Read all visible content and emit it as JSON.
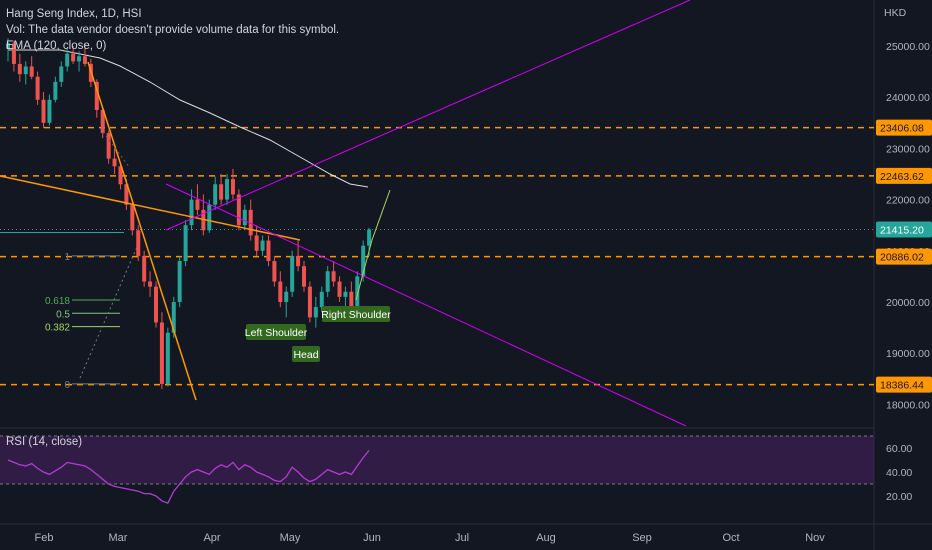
{
  "header": {
    "symbol_line": "Hang Seng Index, 1D, HSI",
    "volume_note": "Vol: The data vendor doesn't provide volume data for this symbol.",
    "ema_label": "EMA (120, close, 0)",
    "rsi_label": "RSI (14, close)",
    "currency": "HKD"
  },
  "colors": {
    "background": "#131722",
    "bull": "#26a69a",
    "bear": "#ef5350",
    "level_line": "#ff9800",
    "trend_magenta": "#d500f9",
    "rsi_line": "#b43cd6",
    "rsi_band": "#4a2163",
    "ema": "#ffffff"
  },
  "chart_data": {
    "type": "candlestick",
    "y_axis_ticks": [
      25000,
      24000,
      23000,
      22000,
      21000,
      20000,
      19000,
      18000
    ],
    "y_tick_labels": [
      "25000.00",
      "24000.00",
      "23000.00",
      "22000.00",
      "21000.00",
      "20000.00",
      "19000.00",
      "18000.00"
    ],
    "x_axis_labels": [
      "Feb",
      "Mar",
      "Apr",
      "May",
      "Jun",
      "Jul",
      "Aug",
      "Sep",
      "Oct",
      "Nov"
    ],
    "price_levels": [
      {
        "value": 23406.08,
        "label": "23406.08"
      },
      {
        "value": 22463.62,
        "label": "22463.62"
      },
      {
        "value": 20886.02,
        "label": "20886.02"
      },
      {
        "value": 18386.44,
        "label": "18386.44"
      }
    ],
    "last_price": {
      "value": 21415.2,
      "label": "21415.20"
    },
    "fib_levels": [
      {
        "label": "1",
        "value": 20900
      },
      {
        "label": "0.618",
        "value": 20040
      },
      {
        "label": "0.5",
        "value": 19780
      },
      {
        "label": "0.382",
        "value": 19520
      },
      {
        "label": "0",
        "value": 18400
      }
    ],
    "pattern_labels": [
      "Left Shoulder",
      "Head",
      "Right Shoulder"
    ],
    "candles": [
      [
        24950,
        25150,
        24700,
        25050
      ],
      [
        25050,
        25100,
        24500,
        24650
      ],
      [
        24650,
        24850,
        24300,
        24450
      ],
      [
        24450,
        24700,
        24250,
        24600
      ],
      [
        24600,
        24800,
        24350,
        24400
      ],
      [
        24400,
        24500,
        23850,
        23950
      ],
      [
        23950,
        24100,
        23400,
        23500
      ],
      [
        23500,
        24050,
        23450,
        23950
      ],
      [
        23950,
        24400,
        23900,
        24300
      ],
      [
        24300,
        24700,
        24200,
        24600
      ],
      [
        24600,
        24950,
        24500,
        24850
      ],
      [
        24850,
        25000,
        24650,
        24700
      ],
      [
        24700,
        24900,
        24500,
        24800
      ],
      [
        24800,
        25050,
        24600,
        24650
      ],
      [
        24650,
        24750,
        24200,
        24300
      ],
      [
        24300,
        24350,
        23600,
        23750
      ],
      [
        23750,
        23800,
        23200,
        23300
      ],
      [
        23300,
        23350,
        22700,
        22800
      ],
      [
        22800,
        23000,
        22500,
        22650
      ],
      [
        22650,
        22700,
        22200,
        22300
      ],
      [
        22300,
        22400,
        21800,
        21900
      ],
      [
        21900,
        22000,
        21300,
        21400
      ],
      [
        21400,
        21500,
        20800,
        20900
      ],
      [
        20900,
        21000,
        20300,
        20400
      ],
      [
        20400,
        20600,
        20100,
        20300
      ],
      [
        20300,
        20400,
        19500,
        19600
      ],
      [
        19600,
        19800,
        18300,
        18400
      ],
      [
        18400,
        19500,
        18350,
        19400
      ],
      [
        19400,
        20100,
        19300,
        20000
      ],
      [
        20000,
        20900,
        19900,
        20800
      ],
      [
        20800,
        21600,
        20700,
        21500
      ],
      [
        21500,
        22200,
        21400,
        22000
      ],
      [
        22000,
        22300,
        21700,
        21800
      ],
      [
        21800,
        22100,
        21300,
        21400
      ],
      [
        21400,
        22000,
        21350,
        21900
      ],
      [
        21900,
        22450,
        21800,
        22300
      ],
      [
        22300,
        22500,
        21900,
        22000
      ],
      [
        22000,
        22500,
        21900,
        22400
      ],
      [
        22400,
        22600,
        22000,
        22100
      ],
      [
        22100,
        22200,
        21400,
        21500
      ],
      [
        21500,
        21900,
        21400,
        21800
      ],
      [
        21800,
        22000,
        21200,
        21300
      ],
      [
        21300,
        21500,
        20900,
        21000
      ],
      [
        21000,
        21300,
        20900,
        21200
      ],
      [
        21200,
        21300,
        20700,
        20800
      ],
      [
        20800,
        20900,
        20300,
        20400
      ],
      [
        20400,
        20600,
        19900,
        20000
      ],
      [
        20000,
        20300,
        19700,
        20200
      ],
      [
        20200,
        21000,
        20100,
        20900
      ],
      [
        20900,
        21200,
        20600,
        20700
      ],
      [
        20700,
        20800,
        20200,
        20300
      ],
      [
        20300,
        20400,
        19600,
        19700
      ],
      [
        19700,
        20100,
        19500,
        19900
      ],
      [
        19900,
        20300,
        19800,
        20200
      ],
      [
        20200,
        20700,
        20100,
        20600
      ],
      [
        20600,
        20800,
        20300,
        20400
      ],
      [
        20400,
        20500,
        20000,
        20100
      ],
      [
        20100,
        20300,
        19900,
        20200
      ],
      [
        20200,
        20400,
        19800,
        19900
      ],
      [
        19900,
        20600,
        19800,
        20500
      ],
      [
        20500,
        21200,
        20400,
        21100
      ],
      [
        21100,
        21450,
        20900,
        21415
      ]
    ],
    "rsi": {
      "ylim": [
        10,
        70
      ],
      "tick_labels": [
        "60.00",
        "40.00",
        "20.00"
      ],
      "ticks": [
        60,
        40,
        20
      ],
      "upper_band": 70,
      "lower_band": 30,
      "values": [
        50,
        48,
        46,
        45,
        47,
        43,
        40,
        38,
        41,
        44,
        48,
        47,
        46,
        45,
        42,
        38,
        34,
        30,
        28,
        27,
        26,
        25,
        24,
        22,
        22,
        20,
        16,
        14,
        24,
        30,
        36,
        40,
        42,
        40,
        38,
        43,
        46,
        44,
        48,
        42,
        46,
        44,
        40,
        38,
        36,
        33,
        32,
        36,
        44,
        40,
        35,
        32,
        34,
        38,
        42,
        40,
        38,
        40,
        38,
        45,
        52,
        58
      ]
    }
  }
}
